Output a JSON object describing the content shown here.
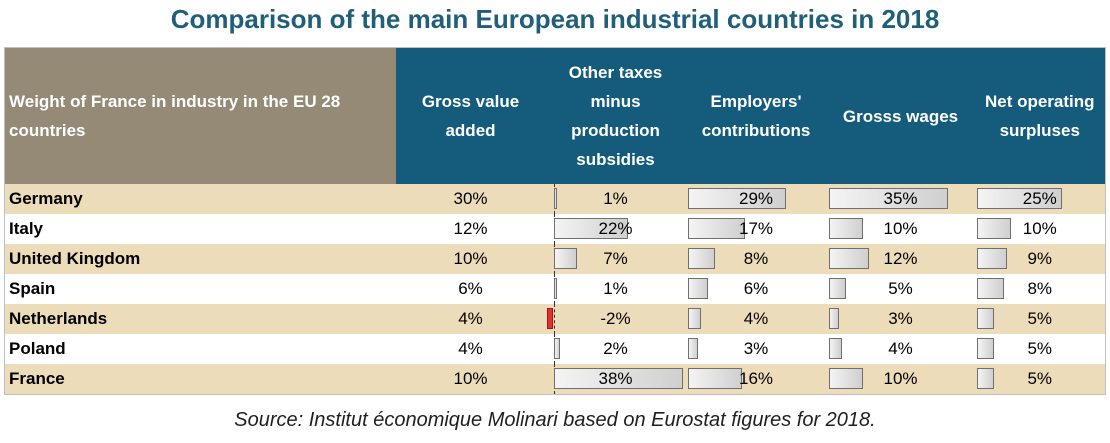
{
  "title": "Comparison of the main European industrial countries in 2018",
  "source": "Source: Institut économique Molinari based on Eurostat figures for 2018.",
  "chart_data": {
    "type": "table",
    "title": "Comparison of the main European industrial countries in 2018",
    "row_header": "Weight of France in industry in the EU 28 countries",
    "columns": [
      {
        "key": "gva",
        "label": "Gross value added",
        "bars": false
      },
      {
        "key": "taxes",
        "label": "Other taxes minus production subsidies",
        "bars": true
      },
      {
        "key": "employers",
        "label": "Employers' contributions",
        "bars": true
      },
      {
        "key": "wages",
        "label": "Grosss wages",
        "bars": true
      },
      {
        "key": "surplus",
        "label": "Net operating surpluses",
        "bars": true
      }
    ],
    "rows": [
      {
        "country": "Germany",
        "gva": 30,
        "taxes": 1,
        "employers": 29,
        "wages": 35,
        "surplus": 25
      },
      {
        "country": "Italy",
        "gva": 12,
        "taxes": 22,
        "employers": 17,
        "wages": 10,
        "surplus": 10
      },
      {
        "country": "United Kingdom",
        "gva": 10,
        "taxes": 7,
        "employers": 8,
        "wages": 12,
        "surplus": 9
      },
      {
        "country": "Spain",
        "gva": 6,
        "taxes": 1,
        "employers": 6,
        "wages": 5,
        "surplus": 8
      },
      {
        "country": "Netherlands",
        "gva": 4,
        "taxes": -2,
        "employers": 4,
        "wages": 3,
        "surplus": 5
      },
      {
        "country": "Poland",
        "gva": 4,
        "taxes": 2,
        "employers": 3,
        "wages": 4,
        "surplus": 5
      },
      {
        "country": "France",
        "gva": 10,
        "taxes": 38,
        "employers": 16,
        "wages": 10,
        "surplus": 5
      }
    ],
    "unit": "%"
  }
}
